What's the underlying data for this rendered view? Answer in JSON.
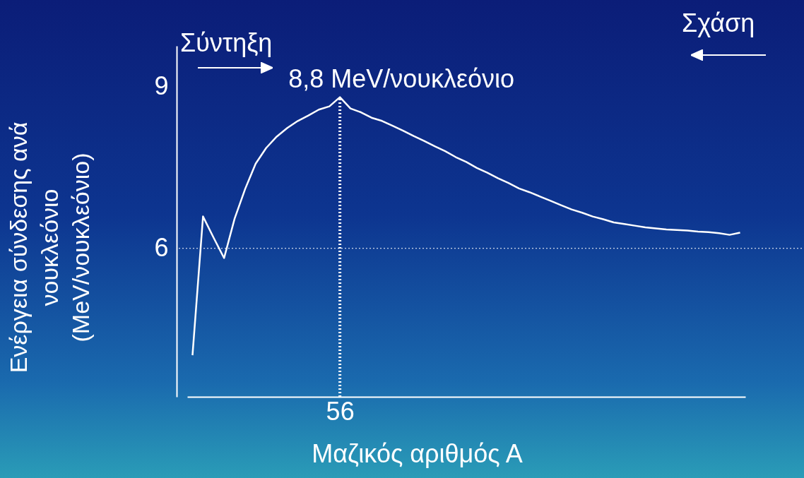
{
  "chart_data": {
    "type": "line",
    "xlabel": "Μαζικός αριθμός Α",
    "ylabel": "Ενέργεια σύνδεσης ανά νουκλεόνιο (MeV/νουκλεόνιο)",
    "categories": [
      null,
      null,
      null,
      null,
      null,
      null,
      null,
      null,
      null,
      null,
      null,
      null,
      null,
      null,
      "56",
      null,
      null,
      null,
      null,
      null,
      null,
      null,
      null,
      null,
      null,
      null,
      null,
      null,
      null,
      null,
      null,
      null,
      null,
      null,
      null,
      null,
      null,
      null,
      null,
      null,
      null,
      null,
      null,
      null,
      null,
      null,
      null,
      null,
      null,
      null,
      null,
      null,
      null
    ],
    "values": [
      4.02,
      6.59,
      6.2,
      5.82,
      6.55,
      7.1,
      7.57,
      7.86,
      8.07,
      8.23,
      8.36,
      8.46,
      8.57,
      8.63,
      8.8,
      8.59,
      8.52,
      8.42,
      8.36,
      8.27,
      8.18,
      8.08,
      7.99,
      7.89,
      7.8,
      7.69,
      7.6,
      7.49,
      7.4,
      7.3,
      7.21,
      7.11,
      7.04,
      6.96,
      6.88,
      6.8,
      6.72,
      6.66,
      6.59,
      6.54,
      6.48,
      6.45,
      6.42,
      6.39,
      6.37,
      6.35,
      6.34,
      6.33,
      6.31,
      6.3,
      6.28,
      6.25,
      6.29
    ],
    "color": "#ffffff",
    "ylim": [
      3.25,
      9.75
    ],
    "yticks": [
      6,
      9
    ],
    "grid": false,
    "ref_lines": [
      {
        "axis": "y",
        "value": 6,
        "color": "#ffffff",
        "line_style": "dotted"
      },
      {
        "axis": "x",
        "value": "56",
        "color": "#ffffff",
        "line_style": "dotted"
      }
    ],
    "annotations": [
      {
        "text": "8,8 MeV/νουκλεόνιο",
        "x": "56",
        "y": 8.8
      },
      "Σύντηξη",
      "Σχάση"
    ]
  }
}
